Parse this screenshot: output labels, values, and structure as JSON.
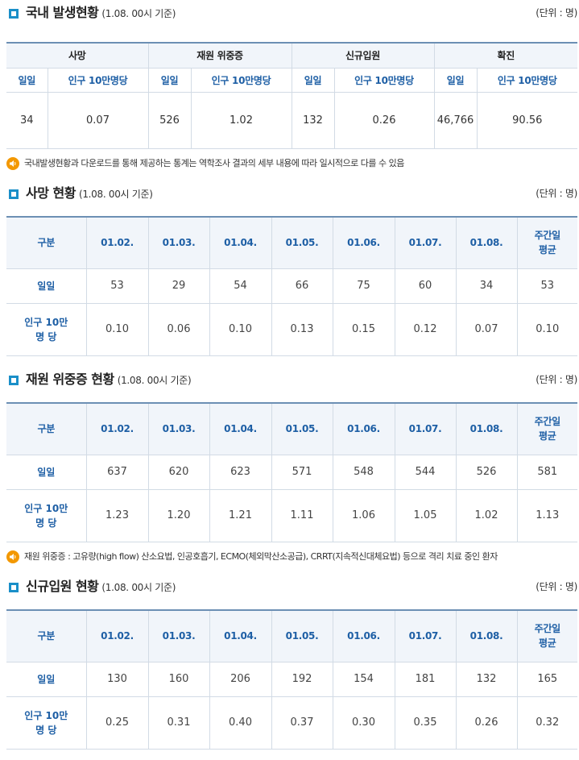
{
  "domestic": {
    "title": "국내 발생현황",
    "date": "(1.08. 00시 기준)",
    "unit": "(단위 : 명)",
    "groups": [
      "사망",
      "재원 위중증",
      "신규입원",
      "확진"
    ],
    "sub_daily": "일일",
    "sub_per": "인구 10만명당",
    "values": [
      {
        "daily": "34",
        "per": "0.07"
      },
      {
        "daily": "526",
        "per": "1.02"
      },
      {
        "daily": "132",
        "per": "0.26"
      },
      {
        "daily": "46,766",
        "per": "90.56"
      }
    ]
  },
  "note1": "국내발생현황과 다운로드를 통해 제공하는 통계는 역학조사 결과의 세부 내용에 따라 일시적으로 다를 수 있음",
  "common": {
    "col_label": "구분",
    "dates": [
      "01.02.",
      "01.03.",
      "01.04.",
      "01.05.",
      "01.06.",
      "01.07.",
      "01.08."
    ],
    "avg_line1": "주간일",
    "avg_line2": "평균",
    "row_daily": "일일",
    "row_per_line1": "인구 10만",
    "row_per_line2": "명 당"
  },
  "deaths": {
    "title": "사망 현황",
    "date": "(1.08. 00시 기준)",
    "unit": "(단위 : 명)",
    "daily": [
      "53",
      "29",
      "54",
      "66",
      "75",
      "60",
      "34",
      "53"
    ],
    "per": [
      "0.10",
      "0.06",
      "0.10",
      "0.13",
      "0.15",
      "0.12",
      "0.07",
      "0.10"
    ]
  },
  "critical": {
    "title": "재원 위중증 현황",
    "date": "(1.08. 00시 기준)",
    "unit": "(단위 : 명)",
    "daily": [
      "637",
      "620",
      "623",
      "571",
      "548",
      "544",
      "526",
      "581"
    ],
    "per": [
      "1.23",
      "1.20",
      "1.21",
      "1.11",
      "1.06",
      "1.05",
      "1.02",
      "1.13"
    ]
  },
  "note2": "재원 위중증 : 고유량(high flow) 산소요법, 인공호흡기, ECMO(체외막산소공급), CRRT(지속적신대체요법) 등으로 격리 치료 중인 환자",
  "admission": {
    "title": "신규입원 현황",
    "date": "(1.08. 00시 기준)",
    "unit": "(단위 : 명)",
    "daily": [
      "130",
      "160",
      "206",
      "192",
      "154",
      "181",
      "132",
      "165"
    ],
    "per": [
      "0.25",
      "0.31",
      "0.40",
      "0.37",
      "0.30",
      "0.35",
      "0.26",
      "0.32"
    ]
  }
}
